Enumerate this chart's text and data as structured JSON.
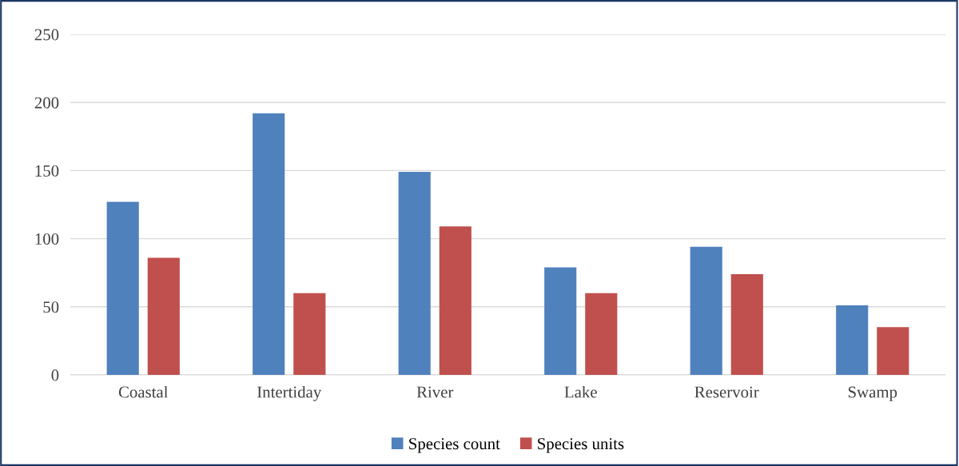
{
  "chart_data": {
    "type": "bar",
    "categories": [
      "Coastal",
      "Intertiday",
      "River",
      "Lake",
      "Reservoir",
      "Swamp"
    ],
    "series": [
      {
        "name": "Species count",
        "color": "#4f81bd",
        "values": [
          127,
          192,
          149,
          79,
          94,
          51
        ]
      },
      {
        "name": "Species units",
        "color": "#c0504d",
        "values": [
          86,
          60,
          109,
          60,
          74,
          35
        ]
      }
    ],
    "ylim": [
      0,
      250
    ],
    "yticks": [
      0,
      50,
      100,
      150,
      200,
      250
    ],
    "grid": "y",
    "legend": "bottom"
  }
}
